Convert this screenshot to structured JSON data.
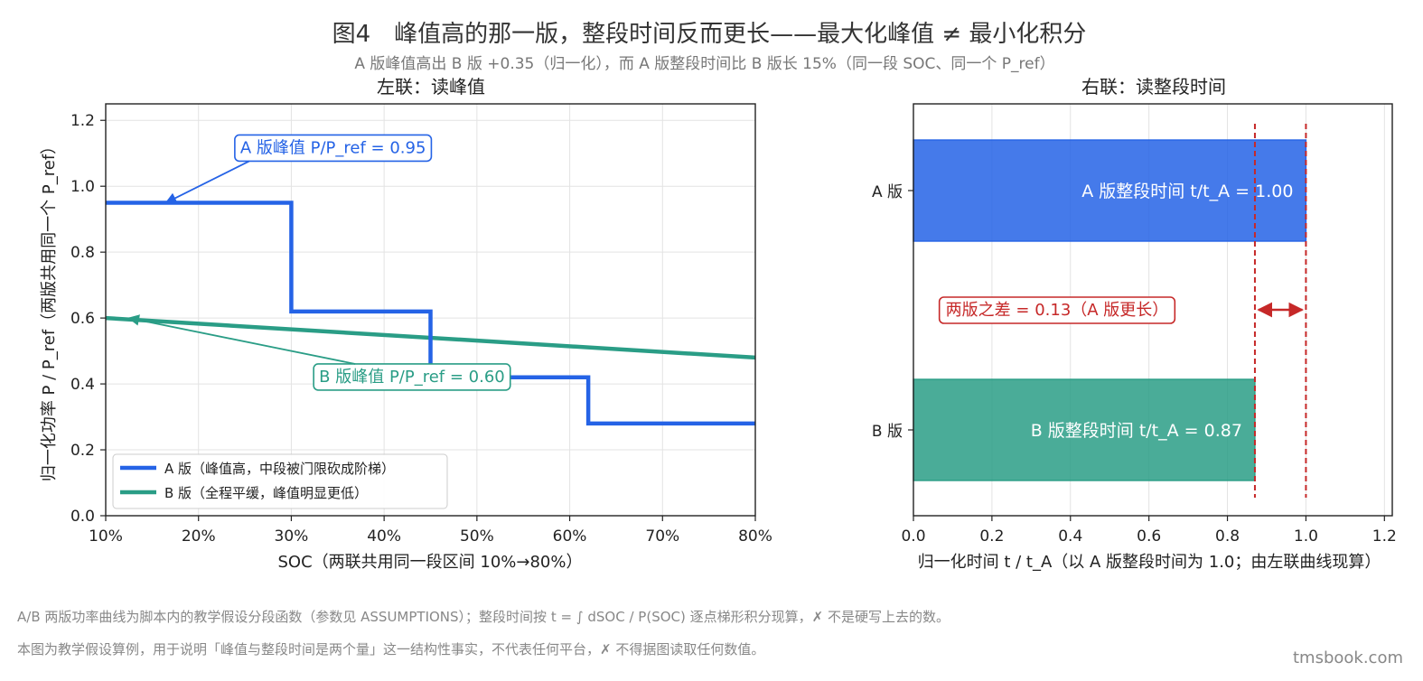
{
  "figure": {
    "title": "图4　峰值高的那一版，整段时间反而更长——最大化峰值 ≠ 最小化积分",
    "subtitle": "A 版峰值高出 B 版 +0.35（归一化），而 A 版整段时间比 B 版长 15%（同一段 SOC、同一个 P_ref）",
    "notes": [
      "A/B 两版功率曲线为脚本内的教学假设分段函数（参数见 ASSUMPTIONS）；整段时间按 t = ∫ dSOC / P(SOC) 逐点梯形积分现算，✗ 不是硬写上去的数。",
      "本图为教学假设算例，用于说明「峰值与整段时间是两个量」这一结构性事实，不代表任何平台，✗ 不得据图读取任何数值。"
    ],
    "watermark": "tmsbook.com"
  },
  "chart_data": [
    {
      "type": "line",
      "panel_title": "左联：读峰值",
      "xlabel": "SOC（两联共用同一段区间 10%→80%）",
      "ylabel": "归一化功率 P / P_ref（两版共用同一个 P_ref）",
      "xlim": [
        10,
        80
      ],
      "ylim": [
        0,
        1.25
      ],
      "xticks": [
        10,
        20,
        30,
        40,
        50,
        60,
        70,
        80
      ],
      "xtick_labels": [
        "10%",
        "20%",
        "30%",
        "40%",
        "50%",
        "60%",
        "70%",
        "80%"
      ],
      "yticks": [
        0,
        0.2,
        0.4,
        0.6,
        0.8,
        1.0,
        1.2
      ],
      "ytick_labels": [
        "0.0",
        "0.2",
        "0.4",
        "0.6",
        "0.8",
        "1.0",
        "1.2"
      ],
      "grid": true,
      "legend_position": "lower-left",
      "series": [
        {
          "name": "A 版（峰值高，中段被门限砍成阶梯）",
          "color": "#2563e6",
          "x": [
            10,
            30,
            30,
            45,
            45,
            62,
            62,
            80
          ],
          "y": [
            0.95,
            0.95,
            0.62,
            0.62,
            0.42,
            0.42,
            0.28,
            0.28
          ]
        },
        {
          "name": "B 版（全程平缓，峰值明显更低）",
          "color": "#2a9d86",
          "x": [
            10,
            80
          ],
          "y": [
            0.6,
            0.48
          ]
        }
      ],
      "annotations": [
        {
          "text": "A 版峰值 P/P_ref = 0.95",
          "point": [
            16.5,
            0.95
          ],
          "text_at": [
            34.5,
            1.12
          ],
          "color": "#2563e6"
        },
        {
          "text": "B 版峰值 P/P_ref = 0.60",
          "point": [
            12.5,
            0.6
          ],
          "text_at": [
            43,
            0.425
          ],
          "color": "#2a9d86"
        }
      ]
    },
    {
      "type": "bar",
      "orientation": "horizontal",
      "panel_title": "右联：读整段时间",
      "xlabel": "归一化时间 t / t_A（以 A 版整段时间为 1.0；由左联曲线现算）",
      "xlim": [
        0,
        1.22
      ],
      "xticks": [
        0,
        0.2,
        0.4,
        0.6,
        0.8,
        1.0,
        1.2
      ],
      "xtick_labels": [
        "0.0",
        "0.2",
        "0.4",
        "0.6",
        "0.8",
        "1.0",
        "1.2"
      ],
      "grid": true,
      "categories": [
        "A 版",
        "B 版"
      ],
      "values": [
        1.0,
        0.87
      ],
      "colors": [
        "#2563e6",
        "#2a9d86"
      ],
      "bar_labels": [
        "A 版整段时间 t/t_A = 1.00",
        "B 版整段时间 t/t_A = 0.87"
      ],
      "reference_lines": [
        0.87,
        1.0
      ],
      "difference": {
        "text": "两版之差 = 0.13（A 版更长）",
        "from": 0.87,
        "to": 1.0,
        "color": "#c62828"
      }
    }
  ]
}
